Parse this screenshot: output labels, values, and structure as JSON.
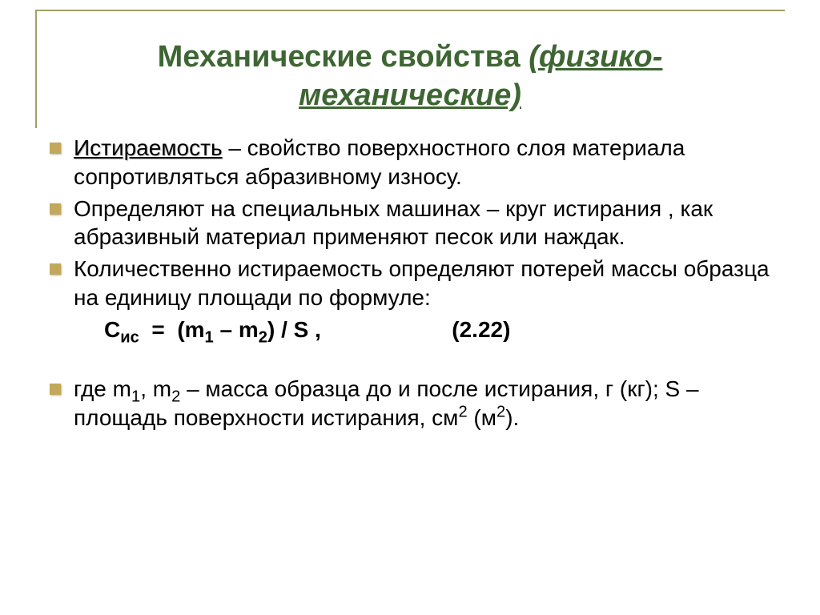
{
  "title": {
    "part1": "Механические свойства ",
    "part2_underline_italic": "(физико-",
    "part3_underline_italic": "механические)"
  },
  "bullets": [
    {
      "term": "Истираемость",
      "text": " – свойство поверхностного слоя материала сопротивляться абразивному износу."
    },
    {
      "text": "Определяют на специальных машинах – круг истирания , как абразивный материал применяют песок или наждак."
    },
    {
      "text": "Количественно истираемость определяют потерей массы образца на единицу площади по формуле:"
    }
  ],
  "formula": {
    "prefix": "С",
    "subscript": "ис",
    "body": "  =  (m",
    "sub1": "1",
    "mid": " – m",
    "sub2": "2",
    "tail": ") / S ,                     (2.22)"
  },
  "where": {
    "prefix": "где m",
    "sub1": "1",
    "mid1": ", m",
    "sub2": "2",
    "text1": " – масса образца до и после истирания, г (кг); S – площадь поверхности истирания, см",
    "sup1": "2",
    "text2": " (м",
    "sup2": "2",
    "text3": ")."
  },
  "colors": {
    "title": "#3e6633",
    "bullet": "#c2a85a",
    "border": "#a0a060",
    "text": "#000000",
    "background": "#ffffff"
  }
}
